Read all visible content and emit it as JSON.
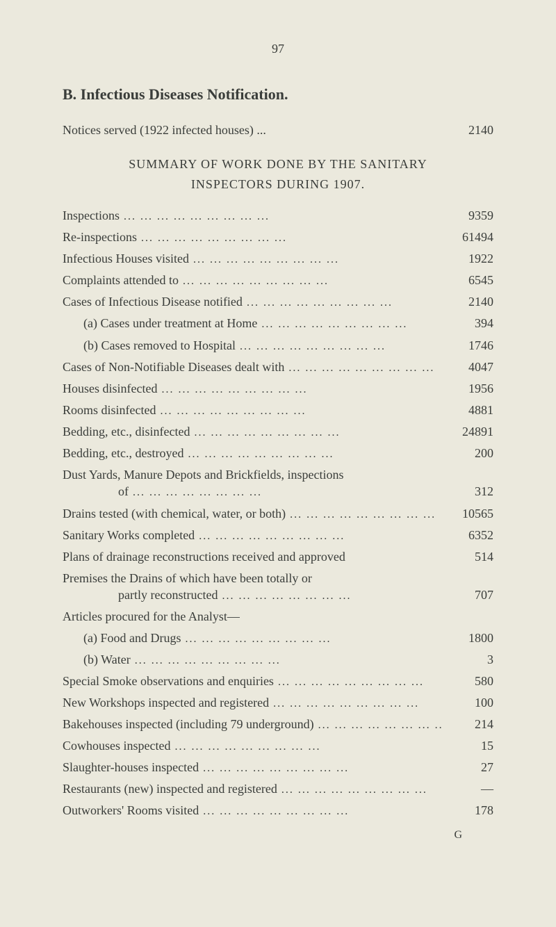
{
  "page_number": "97",
  "section_heading": "B. Infectious Diseases Notification.",
  "notices": {
    "label": "Notices served (1922 infected houses) ...",
    "value": "2140"
  },
  "summary_heading_line1": "SUMMARY OF WORK DONE BY THE SANITARY",
  "summary_heading_line2": "INSPECTORS DURING 1907.",
  "entries": [
    {
      "label": "Inspections",
      "value": "9359",
      "indent": 0
    },
    {
      "label": "Re-inspections",
      "value": "61494",
      "indent": 0
    },
    {
      "label": "Infectious Houses visited",
      "value": "1922",
      "indent": 0
    },
    {
      "label": "Complaints attended to",
      "value": "6545",
      "indent": 0
    },
    {
      "label": "Cases of Infectious Disease notified",
      "value": "2140",
      "indent": 0
    },
    {
      "label": "(a) Cases under treatment at Home",
      "value": "394",
      "indent": 1
    },
    {
      "label": "(b) Cases removed to Hospital",
      "value": "1746",
      "indent": 1
    },
    {
      "label": "Cases of Non-Notifiable Diseases dealt with",
      "value": "4047",
      "indent": 0
    },
    {
      "label": "Houses disinfected",
      "value": "1956",
      "indent": 0
    },
    {
      "label": "Rooms disinfected",
      "value": "4881",
      "indent": 0
    },
    {
      "label": "Bedding, etc., disinfected",
      "value": "24891",
      "indent": 0
    },
    {
      "label": "Bedding, etc., destroyed",
      "value": "200",
      "indent": 0
    }
  ],
  "multi1": {
    "line1": "Dust Yards, Manure Depots and Brickfields, inspections",
    "line2_label": "of",
    "value": "312"
  },
  "entries2": [
    {
      "label": "Drains tested (with chemical, water, or both)",
      "value": "10565",
      "indent": 0
    },
    {
      "label": "Sanitary Works completed",
      "value": "6352",
      "indent": 0
    },
    {
      "label": "Plans of drainage reconstructions received and approved",
      "value": "514",
      "indent": 0,
      "noleader": true
    }
  ],
  "multi2": {
    "line1": "Premises the Drains of which have been totally or",
    "line2_label": "partly reconstructed",
    "value": "707"
  },
  "articles_heading": "Articles procured for the Analyst—",
  "entries3": [
    {
      "label": "(a) Food and Drugs",
      "value": "1800",
      "indent": 1
    },
    {
      "label": "(b) Water",
      "value": "3",
      "indent": 1
    },
    {
      "label": "Special Smoke observations and enquiries",
      "value": "580",
      "indent": 0
    },
    {
      "label": "New Workshops inspected and registered",
      "value": "100",
      "indent": 0
    },
    {
      "label": "Bakehouses inspected (including 79 underground)",
      "value": "214",
      "indent": 0
    },
    {
      "label": "Cowhouses inspected",
      "value": "15",
      "indent": 0
    },
    {
      "label": "Slaughter-houses inspected",
      "value": "27",
      "indent": 0
    },
    {
      "label": "Restaurants (new) inspected and registered",
      "value": "—",
      "indent": 0
    },
    {
      "label": "Outworkers' Rooms visited",
      "value": "178",
      "indent": 0
    }
  ],
  "signature_mark": "G",
  "colors": {
    "background": "#ebe9dd",
    "text": "#3a3d3a"
  },
  "typography": {
    "body_fontsize": 18,
    "heading_fontsize": 22,
    "font_family": "Georgia, Times New Roman, serif"
  }
}
